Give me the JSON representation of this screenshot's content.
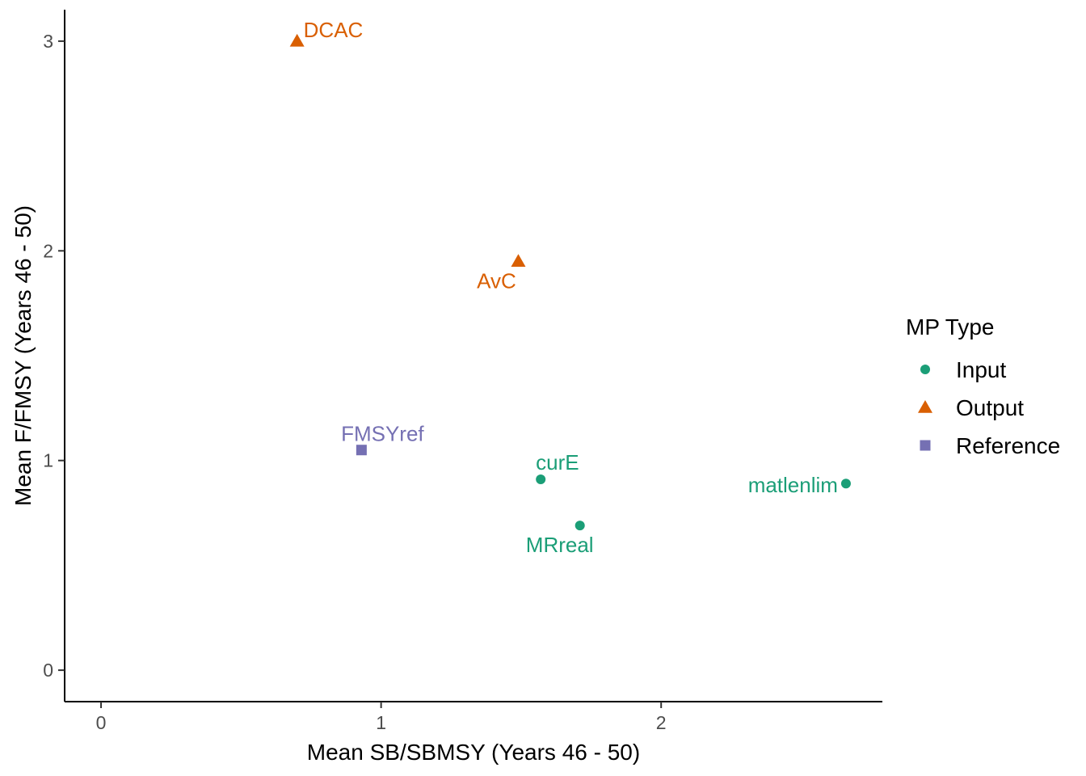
{
  "chart_data": {
    "type": "scatter",
    "xlabel": "Mean SB/SBMSY (Years 46 - 50)",
    "ylabel": "Mean F/FMSY (Years 46 - 50)",
    "xlim": [
      -0.13,
      2.79
    ],
    "ylim": [
      -0.15,
      3.15
    ],
    "xticks": [
      0,
      1,
      2
    ],
    "yticks": [
      0,
      1,
      2,
      3
    ],
    "grid": false,
    "legend": {
      "title": "MP Type",
      "placement": "right",
      "entries": [
        {
          "label": "Input",
          "shape": "circle",
          "color": "#1B9E77"
        },
        {
          "label": "Output",
          "shape": "triangle",
          "color": "#D95F02"
        },
        {
          "label": "Reference",
          "shape": "square",
          "color": "#7570B3"
        }
      ]
    },
    "points": [
      {
        "label": "DCAC",
        "type": "Output",
        "x": 0.7,
        "y": 3.0,
        "label_pos": "above-right"
      },
      {
        "label": "AvC",
        "type": "Output",
        "x": 1.49,
        "y": 1.95,
        "label_pos": "below-left"
      },
      {
        "label": "FMSYref",
        "type": "Reference",
        "x": 0.93,
        "y": 1.05,
        "label_pos": "above"
      },
      {
        "label": "curE",
        "type": "Input",
        "x": 1.57,
        "y": 0.91,
        "label_pos": "above-right"
      },
      {
        "label": "MRreal",
        "type": "Input",
        "x": 1.71,
        "y": 0.69,
        "label_pos": "below-left"
      },
      {
        "label": "matlenlim",
        "type": "Input",
        "x": 2.66,
        "y": 0.89,
        "label_pos": "left"
      }
    ]
  }
}
